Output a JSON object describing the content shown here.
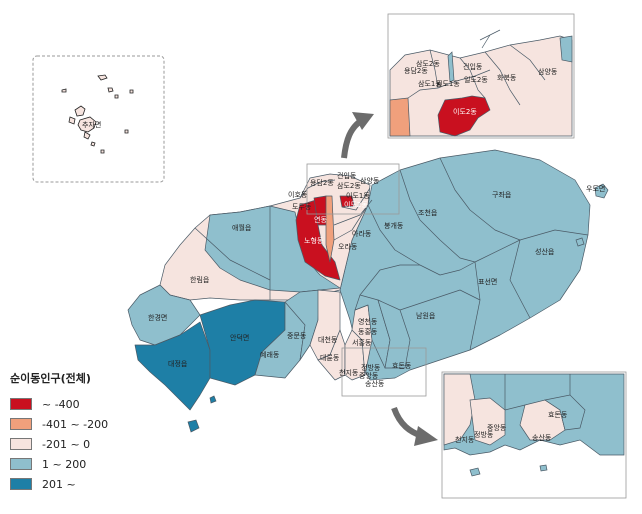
{
  "legend": {
    "title": "순이동인구(전체)",
    "items": [
      {
        "label": "~ -400",
        "color": "#c9101f"
      },
      {
        "label": "-401 ~ -200",
        "color": "#f0a07c"
      },
      {
        "label": "-201 ~ 0",
        "color": "#f6e4df"
      },
      {
        "label": "1 ~ 200",
        "color": "#8fbfcd"
      },
      {
        "label": "201 ~",
        "color": "#1e7fa6"
      }
    ]
  },
  "colors": {
    "sea_bg": "#ffffff",
    "boundary": "#4a5a66",
    "arrow": "#6c6c6c",
    "inset_border": "#999999"
  },
  "inset_chuja": {
    "label": "추자면"
  },
  "main_labels": {
    "yongdam2": "용담2동",
    "geonip": "건입동",
    "samdo2": "삼도2동",
    "samdo1": "삼도1동",
    "samyang": "삼양동",
    "ido1": "이도1동",
    "ido2": "이도2동",
    "iho": "이호동",
    "dodu": "도두동",
    "yeon": "연동",
    "nohyeong": "노형동",
    "ara": "아라동",
    "bonggae": "봉개동",
    "ora": "오라동",
    "jocheon": "조천읍",
    "gujwa": "구좌읍",
    "udo": "우도면",
    "aewol": "애월읍",
    "hallim": "한림읍",
    "hangyeong": "한경면",
    "andeok": "안덕면",
    "daejeong": "대정읍",
    "yerae": "예래동",
    "jungmun": "중문동",
    "daecheon": "대천동",
    "daeryun": "대륜동",
    "cheonji": "천지동",
    "jeongbang": "정방동",
    "jungang": "중앙동",
    "songsan": "송산동",
    "hyodon": "효돈동",
    "yeongcheon": "영천동",
    "donghong": "동홍동",
    "seohong": "서홍동",
    "namwon": "남원읍",
    "pyoseon": "표선면",
    "seongsan": "성산읍"
  },
  "inset_north_labels": {
    "yongdam2": "용담2동",
    "samdo2": "삼도2동",
    "samdo1": "삼도1동",
    "geonip": "건입동",
    "ildo2": "일도2동",
    "ildo1": "일도1동",
    "hwabuk": "화북동",
    "samyang": "삼양동",
    "ido2": "이도2동"
  },
  "inset_south_labels": {
    "cheonji": "천지동",
    "jeongbang": "정방동",
    "jungang": "중앙동",
    "songsan": "송산동",
    "hyodon": "효돈동"
  }
}
